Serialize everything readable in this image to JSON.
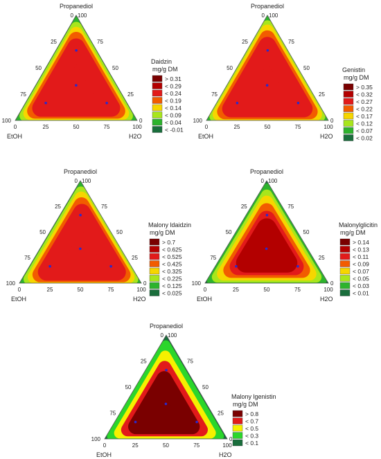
{
  "chart_data": [
    {
      "type": "ternary-contour",
      "vertices": {
        "top": "Propanediol",
        "left": "EtOH",
        "right": "H2O"
      },
      "ticks": [
        "25",
        "50",
        "75",
        "100",
        "0",
        "25",
        "50",
        "75",
        "100",
        "0",
        "100",
        "75",
        "50",
        "25"
      ],
      "design_points": [
        [
          33.3,
          33.3,
          33.3
        ],
        [
          66.7,
          16.7,
          16.7
        ],
        [
          16.7,
          66.7,
          16.7
        ],
        [
          16.7,
          16.7,
          66.7
        ]
      ],
      "legend_title": [
        "Daidzin",
        "mg/g DM"
      ],
      "legend": [
        "> 0.31",
        "< 0.29",
        "< 0.24",
        "< 0.19",
        "< 0.14",
        "< 0.09",
        "< 0.04",
        "< -0.01"
      ],
      "colors": [
        "#7a0000",
        "#b30000",
        "#e21a1a",
        "#f25c00",
        "#f6d600",
        "#a8e61c",
        "#2db32d",
        "#1a6e3c"
      ]
    },
    {
      "type": "ternary-contour",
      "vertices": {
        "top": "Propanediol",
        "left": "EtOH",
        "right": "H2O"
      },
      "ticks": [
        "25",
        "50",
        "75",
        "100",
        "0",
        "25",
        "50",
        "75",
        "100",
        "0",
        "100",
        "75",
        "50",
        "25"
      ],
      "design_points": [
        [
          33.3,
          33.3,
          33.3
        ],
        [
          66.7,
          16.7,
          16.7
        ],
        [
          16.7,
          66.7,
          16.7
        ],
        [
          16.7,
          16.7,
          66.7
        ]
      ],
      "legend_title": [
        "Genistin",
        "mg/g DM"
      ],
      "legend": [
        "> 0.35",
        "< 0.32",
        "< 0.27",
        "< 0.22",
        "< 0.17",
        "< 0.12",
        "< 0.07",
        "< 0.02"
      ],
      "colors": [
        "#7a0000",
        "#b30000",
        "#e21a1a",
        "#f25c00",
        "#f6d600",
        "#a8e61c",
        "#2db32d",
        "#1a6e3c"
      ]
    },
    {
      "type": "ternary-contour",
      "vertices": {
        "top": "Propanediol",
        "left": "EtOH",
        "right": "H2O"
      },
      "ticks": [
        "25",
        "50",
        "75",
        "100",
        "0",
        "25",
        "50",
        "75",
        "100",
        "0",
        "100",
        "75",
        "50",
        "25"
      ],
      "design_points": [
        [
          33.3,
          33.3,
          33.3
        ],
        [
          66.7,
          16.7,
          16.7
        ],
        [
          16.7,
          66.7,
          16.7
        ],
        [
          16.7,
          16.7,
          66.7
        ]
      ],
      "legend_title": [
        "Malony ldaidzin",
        "mg/g DM"
      ],
      "legend": [
        "> 0.7",
        "< 0.625",
        "< 0.525",
        "< 0.425",
        "< 0.325",
        "< 0.225",
        "< 0.125",
        "< 0.025"
      ],
      "colors": [
        "#7a0000",
        "#b30000",
        "#e21a1a",
        "#f25c00",
        "#f6d600",
        "#a8e61c",
        "#2db32d",
        "#1a6e3c"
      ]
    },
    {
      "type": "ternary-contour",
      "vertices": {
        "top": "Propanediol",
        "left": "EtOH",
        "right": "H2O"
      },
      "ticks": [
        "25",
        "50",
        "75",
        "100",
        "0",
        "25",
        "50",
        "75",
        "100",
        "0",
        "100",
        "75",
        "50",
        "25"
      ],
      "design_points": [
        [
          33.3,
          33.3,
          33.3
        ],
        [
          66.7,
          16.7,
          16.7
        ],
        [
          16.7,
          66.7,
          16.7
        ],
        [
          16.7,
          16.7,
          66.7
        ]
      ],
      "legend_title": [
        "Malonylglicitin",
        "mg/g DM"
      ],
      "legend": [
        "> 0.14",
        "< 0.13",
        "< 0.11",
        "< 0.09",
        "< 0.07",
        "< 0.05",
        "< 0.03",
        "< 0.01"
      ],
      "colors": [
        "#7a0000",
        "#b30000",
        "#e21a1a",
        "#f25c00",
        "#f6d600",
        "#a8e61c",
        "#2db32d",
        "#1a6e3c"
      ]
    },
    {
      "type": "ternary-contour",
      "vertices": {
        "top": "Propanediol",
        "left": "EtOH",
        "right": "H2O"
      },
      "ticks": [
        "25",
        "50",
        "75",
        "100",
        "0",
        "25",
        "50",
        "75",
        "100",
        "0",
        "100",
        "75",
        "50",
        "25"
      ],
      "design_points": [
        [
          33.3,
          33.3,
          33.3
        ],
        [
          66.7,
          16.7,
          16.7
        ],
        [
          16.7,
          66.7,
          16.7
        ],
        [
          16.7,
          16.7,
          66.7
        ]
      ],
      "legend_title": [
        "Malony lgenistin",
        "mg/g DM"
      ],
      "legend": [
        "> 0.8",
        "< 0.7",
        "< 0.5",
        "< 0.3",
        "< 0.1"
      ],
      "colors": [
        "#7a0000",
        "#e21a1a",
        "#f6f000",
        "#2bd62b",
        "#1a6e3c"
      ]
    }
  ]
}
